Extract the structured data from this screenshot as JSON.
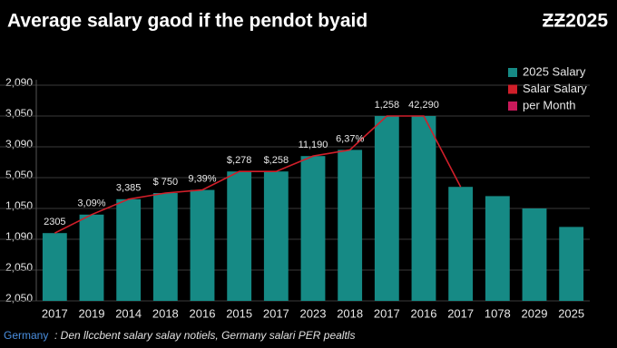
{
  "chart_data": {
    "type": "bar",
    "title": "Average salary gaod if the pendot byaid",
    "badge": "ƵƵ2025",
    "categories": [
      "2017",
      "2019",
      "2014",
      "2018",
      "2016",
      "2015",
      "2017",
      "2023",
      "2018",
      "2017",
      "2016",
      "2017",
      "1078",
      "2029",
      "2025"
    ],
    "series": [
      {
        "name": "2025 Salary",
        "type": "bar",
        "color": "#168a85",
        "values": [
          2.2,
          2.8,
          3.3,
          3.5,
          3.6,
          4.2,
          4.2,
          4.7,
          4.9,
          6.0,
          6.0,
          3.7,
          3.4,
          3.0,
          2.4
        ]
      },
      {
        "name": "Salar Salary",
        "type": "line",
        "color": "#d01f2a",
        "values": [
          2.2,
          2.8,
          3.3,
          3.5,
          3.6,
          4.2,
          4.2,
          4.7,
          4.9,
          6.0,
          6.0,
          3.7,
          null,
          null,
          null
        ]
      },
      {
        "name": "per Month",
        "type": "line",
        "color": "#c8195a",
        "values": [
          null,
          null,
          null,
          null,
          null,
          null,
          null,
          null,
          null,
          null,
          null,
          null,
          null,
          null,
          null
        ]
      }
    ],
    "annotations": [
      "2305",
      "3,09%",
      "3,385",
      "$ 750",
      "9,39%",
      "$,278",
      "$,258",
      "11,190",
      "6,37%",
      "1,258",
      "42,290",
      null,
      null,
      null,
      null
    ],
    "ylim": [
      0,
      7
    ],
    "yticks": [
      {
        "value": 0,
        "label": "2,050"
      },
      {
        "value": 1,
        "label": "2,050"
      },
      {
        "value": 2,
        "label": "1,090"
      },
      {
        "value": 3,
        "label": "1,050"
      },
      {
        "value": 4,
        "label": "5,050"
      },
      {
        "value": 5,
        "label": "3,090"
      },
      {
        "value": 6,
        "label": "3,050"
      },
      {
        "value": 7,
        "label": "2,090"
      }
    ],
    "grid": true,
    "legend": "top-right",
    "source_label": "Germany",
    "source_text": ": Den llccbent salary salay notiels, Germany salari PER pealtls"
  }
}
